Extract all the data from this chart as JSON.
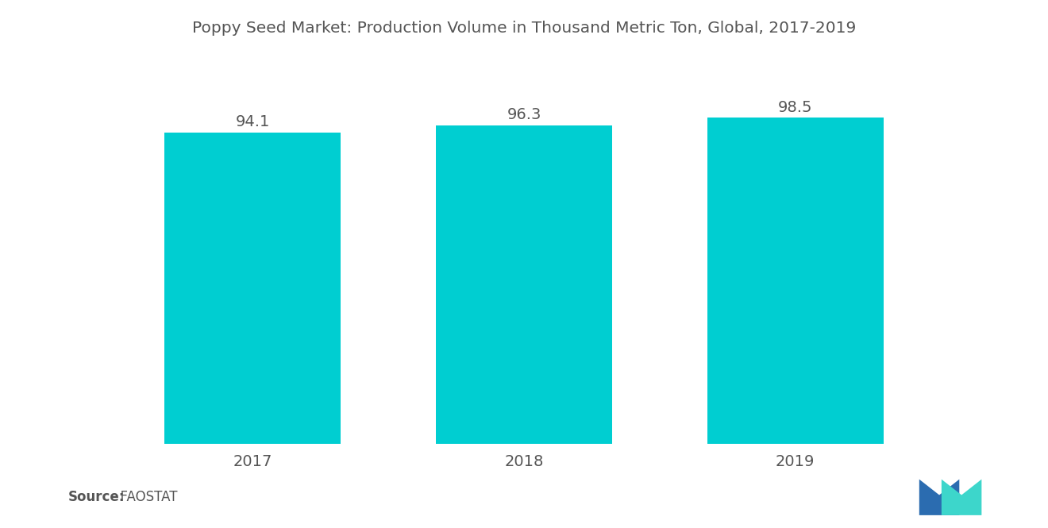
{
  "title": "Poppy Seed Market: Production Volume in Thousand Metric Ton, Global, 2017-2019",
  "categories": [
    "2017",
    "2018",
    "2019"
  ],
  "values": [
    94.1,
    96.3,
    98.5
  ],
  "bar_color": "#00CED1",
  "background_color": "#ffffff",
  "title_color": "#555555",
  "label_color": "#555555",
  "source_bold": "Source:",
  "source_plain": "  FAOSTAT",
  "title_fontsize": 14.5,
  "label_fontsize": 14,
  "value_fontsize": 14,
  "source_fontsize": 12,
  "ylim": [
    0,
    115
  ],
  "bar_width": 0.65,
  "logo_blue": "#2B6CB0",
  "logo_teal": "#3DD6CB"
}
